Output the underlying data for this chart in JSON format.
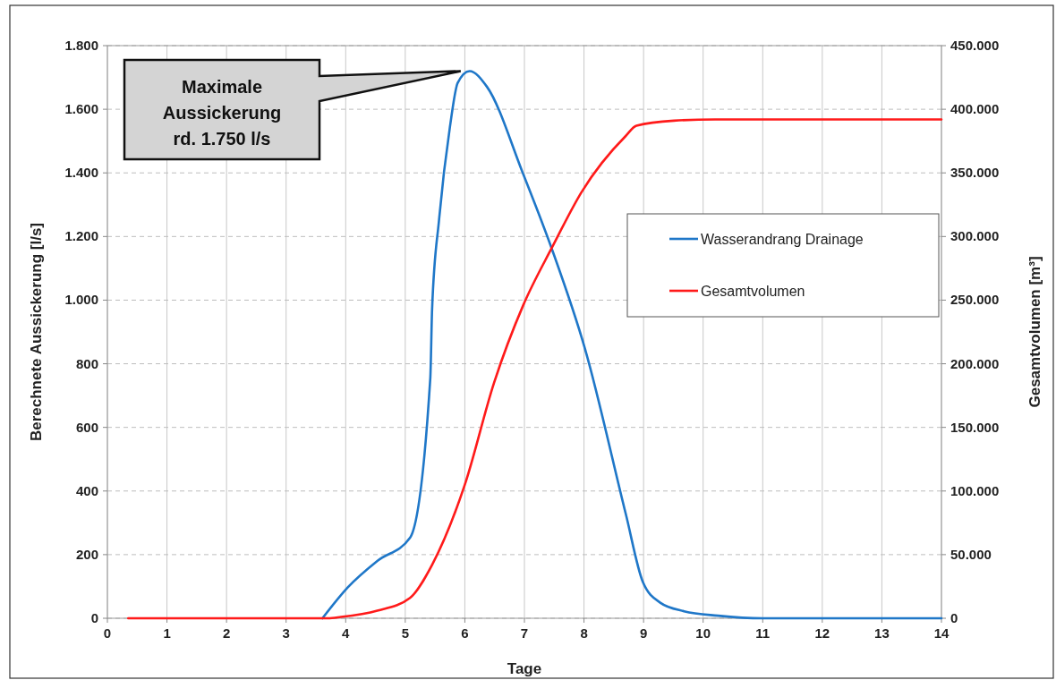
{
  "chart_data": {
    "type": "line",
    "xlabel": "Tage",
    "ylabel": "Berechnete Aussickerung [l/s]",
    "y2label": "Gesamtvolumen [m³]",
    "xlim": [
      0,
      14
    ],
    "xticks": [
      0,
      1,
      2,
      3,
      4,
      5,
      6,
      7,
      8,
      9,
      10,
      11,
      12,
      13,
      14
    ],
    "ylim": [
      0,
      1800
    ],
    "yticks": [
      0,
      200,
      400,
      600,
      800,
      {
        "value": 1000,
        "label": "1.000"
      },
      {
        "value": 1200,
        "label": "1.200"
      },
      {
        "value": 1400,
        "label": "1.400"
      },
      {
        "value": 1600,
        "label": "1.600"
      },
      {
        "value": 1800,
        "label": "1.800"
      }
    ],
    "y2lim": [
      0,
      450000
    ],
    "y2ticks": [
      0,
      {
        "value": 50000,
        "label": "50.000"
      },
      {
        "value": 100000,
        "label": "100.000"
      },
      {
        "value": 150000,
        "label": "150.000"
      },
      {
        "value": 200000,
        "label": "200.000"
      },
      {
        "value": 250000,
        "label": "250.000"
      },
      {
        "value": 300000,
        "label": "300.000"
      },
      {
        "value": 350000,
        "label": "350.000"
      },
      {
        "value": 400000,
        "label": "400.000"
      },
      {
        "value": 450000,
        "label": "450.000"
      }
    ],
    "grid": true,
    "legend": "right",
    "marker": "none",
    "line_style": "solid",
    "annotations": [
      "Maximale Aussickerung rd. 1.750 l/s"
    ],
    "series": [
      {
        "name": "Wasserandrang Drainage",
        "color": "#1f77c8",
        "x": [
          3.61,
          4.04,
          4.53,
          5.08,
          5.42,
          5.45,
          5.57,
          5.75,
          5.88,
          6.08,
          6.37,
          6.98,
          7.47,
          8.02,
          8.7,
          8.99,
          9.28,
          9.68,
          10.25,
          11,
          14
        ],
        "values": [
          0,
          98,
          180,
          253,
          754,
          970,
          1258,
          1545,
          1683,
          1720,
          1671,
          1396,
          1156,
          845,
          329,
          113,
          49,
          22,
          8,
          0,
          0
        ]
      },
      {
        "name": "Gesamtvolumen",
        "color": "#ff1a1a",
        "axis": "y2",
        "x": [
          0.35,
          3.7,
          3.92,
          4.53,
          5.08,
          5.45,
          6,
          6.49,
          6.98,
          7.47,
          7.96,
          8.7,
          8.88,
          9.51,
          10.2,
          14
        ],
        "values": [
          0,
          0,
          1000,
          6000,
          16000,
          42000,
          105000,
          185000,
          246000,
          292000,
          335000,
          379000,
          387000,
          391000,
          392000,
          392000
        ]
      }
    ]
  }
}
